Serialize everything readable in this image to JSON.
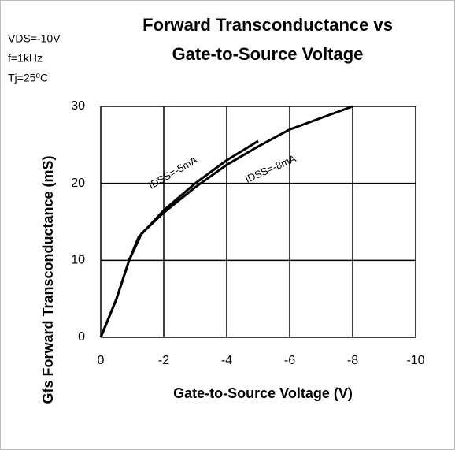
{
  "chart_data": {
    "type": "line",
    "title": [
      "Forward Transconductance vs",
      "Gate-to-Source Voltage"
    ],
    "annotations": [
      "VDS=-10V",
      "f=1kHz",
      "Tj=25⁰C"
    ],
    "x_label": "Gate-to-Source Voltage  (V)",
    "y_label": "Gfs  Forward Transconductance  (mS)",
    "xlim": [
      0,
      -10
    ],
    "xticks": [
      0,
      -2,
      -4,
      -6,
      -8,
      -10
    ],
    "ylim": [
      0,
      30
    ],
    "yticks": [
      0,
      10,
      20,
      30
    ],
    "grid": true,
    "series": [
      {
        "name": "IDSS=-5mA",
        "color": "#000000",
        "x": [
          0,
          -0.5,
          -0.9,
          -1.2,
          -2,
          -3,
          -4,
          -5
        ],
        "values": [
          0,
          5,
          10,
          13,
          16.5,
          20,
          23,
          25.5
        ]
      },
      {
        "name": "IDSS=-8mA",
        "color": "#000000",
        "x": [
          0,
          -0.5,
          -0.9,
          -1.3,
          -2,
          -3,
          -4,
          -5,
          -6,
          -7,
          -8
        ],
        "values": [
          0,
          5,
          10,
          13.5,
          16.2,
          19.5,
          22.4,
          24.8,
          27,
          28.5,
          30
        ]
      }
    ]
  }
}
